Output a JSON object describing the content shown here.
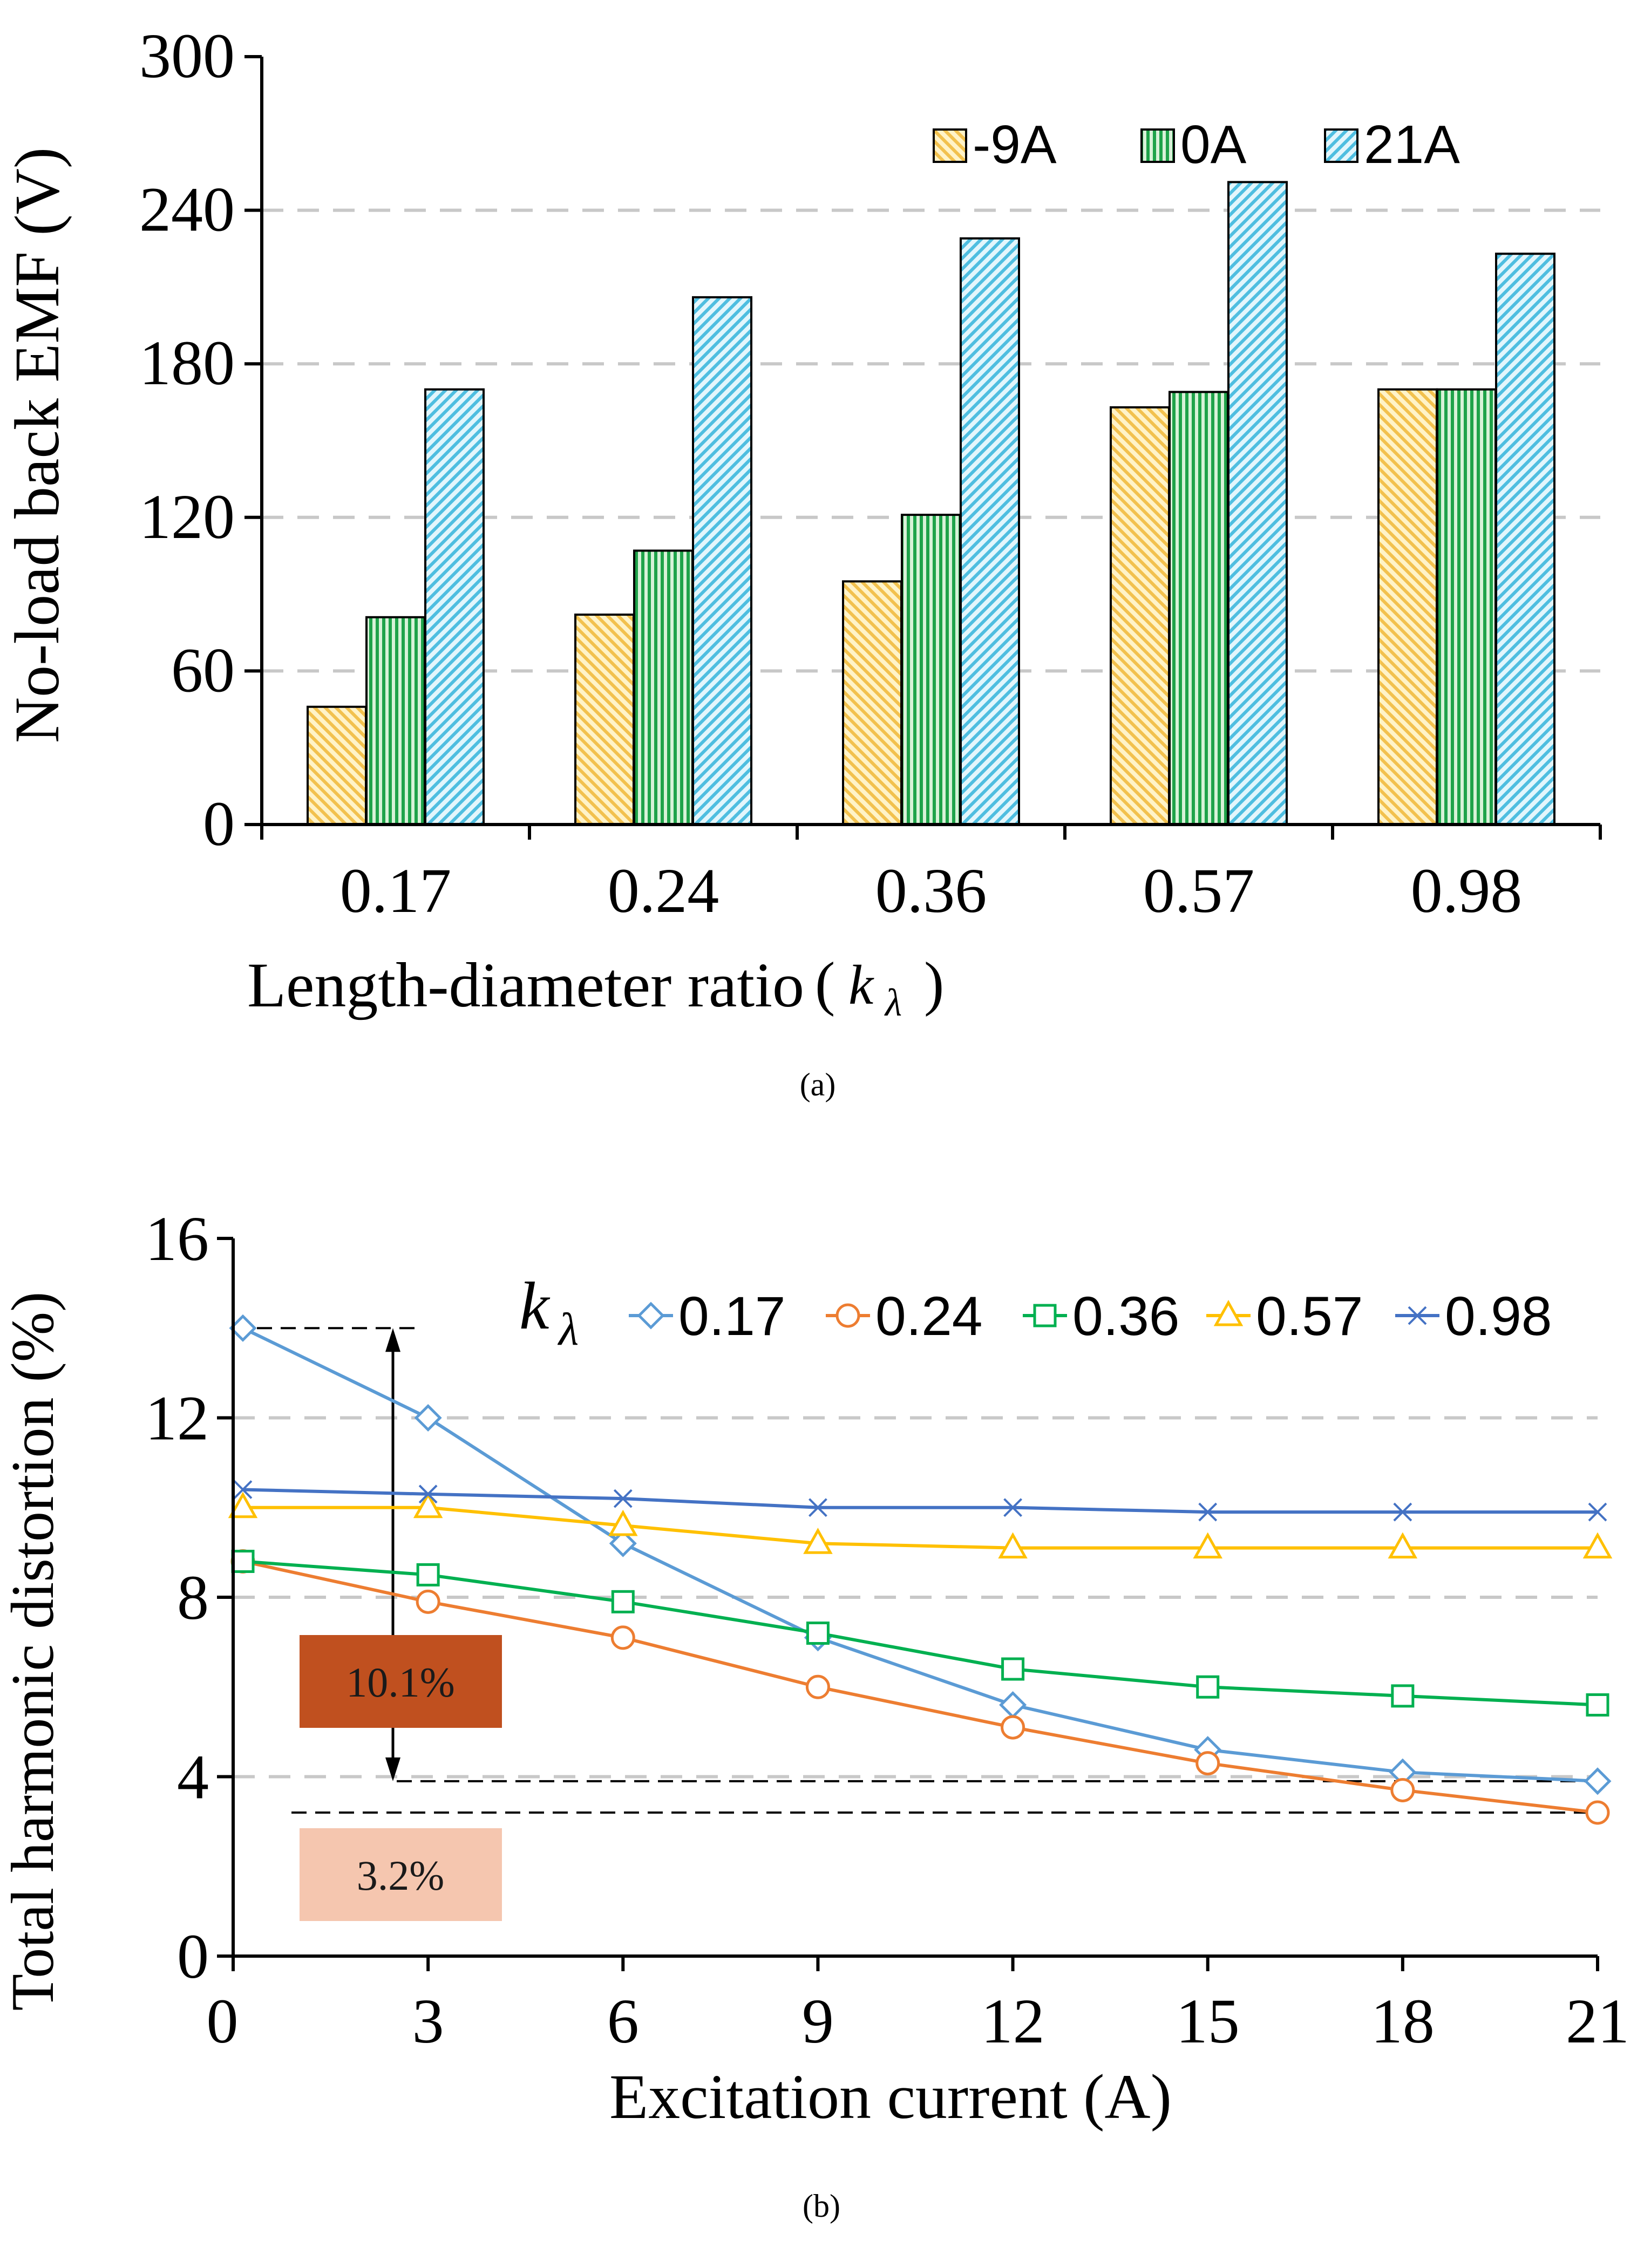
{
  "chart_data": [
    {
      "type": "bar",
      "panel_label": "(a)",
      "title": "",
      "xlabel": "Length-diameter ratio",
      "xlabel_paren_open": "(",
      "xlabel_symbol": "k",
      "xlabel_subscript": "λ",
      "xlabel_paren_close": ")",
      "ylabel": "No-load back EMF (V)",
      "ylim": [
        0,
        300
      ],
      "yticks": [
        0,
        60,
        120,
        180,
        240,
        300
      ],
      "grid": "horizontal dashed",
      "legend_position": "top-right",
      "categories": [
        "0.17",
        "0.24",
        "0.36",
        "0.57",
        "0.98"
      ],
      "series": [
        {
          "name": "-9A",
          "color": "#FFD966",
          "values": [
            46,
            82,
            95,
            163,
            170
          ]
        },
        {
          "name": "0A",
          "color": "#00B050",
          "values": [
            81,
            107,
            121,
            169,
            170
          ]
        },
        {
          "name": "21A",
          "color": "#5BC8E8",
          "values": [
            170,
            206,
            229,
            251,
            223
          ]
        }
      ]
    },
    {
      "type": "line",
      "panel_label": "(b)",
      "title": "",
      "xlabel": "Excitation current (A)",
      "ylabel": "Total harmonic distortion (%)",
      "xlim": [
        0,
        21
      ],
      "ylim": [
        0,
        16
      ],
      "xticks": [
        0,
        3,
        6,
        9,
        12,
        15,
        18,
        21
      ],
      "yticks": [
        0,
        4,
        8,
        12,
        16
      ],
      "grid": "horizontal dashed",
      "legend_position": "top-right",
      "legend_symbol": "k",
      "legend_subscript": "λ",
      "x": [
        0,
        3,
        6,
        9,
        12,
        15,
        18,
        21
      ],
      "series": [
        {
          "name": "0.17",
          "color": "#5B9BD5",
          "marker": "diamond",
          "values": [
            14.0,
            12.0,
            9.2,
            7.1,
            5.6,
            4.6,
            4.1,
            3.9
          ]
        },
        {
          "name": "0.24",
          "color": "#ED7D31",
          "marker": "circle",
          "values": [
            8.8,
            7.9,
            7.1,
            6.0,
            5.1,
            4.3,
            3.7,
            3.2
          ]
        },
        {
          "name": "0.36",
          "color": "#00B050",
          "marker": "square",
          "values": [
            8.8,
            8.5,
            7.9,
            7.2,
            6.4,
            6.0,
            5.8,
            5.6
          ]
        },
        {
          "name": "0.57",
          "color": "#FFC000",
          "marker": "triangle",
          "values": [
            10.0,
            10.0,
            9.6,
            9.2,
            9.1,
            9.1,
            9.1,
            9.1
          ]
        },
        {
          "name": "0.98",
          "color": "#4472C4",
          "marker": "x",
          "values": [
            10.4,
            10.3,
            10.2,
            10.0,
            10.0,
            9.9,
            9.9,
            9.9
          ]
        }
      ],
      "annotations": {
        "range_top": 14.0,
        "range_bottom": 3.9,
        "min_value": 3.2,
        "range_label": "10.1%",
        "range_label_color": "#C0501F",
        "min_label": "3.2%",
        "min_label_color": "#F5C6AF"
      }
    }
  ]
}
